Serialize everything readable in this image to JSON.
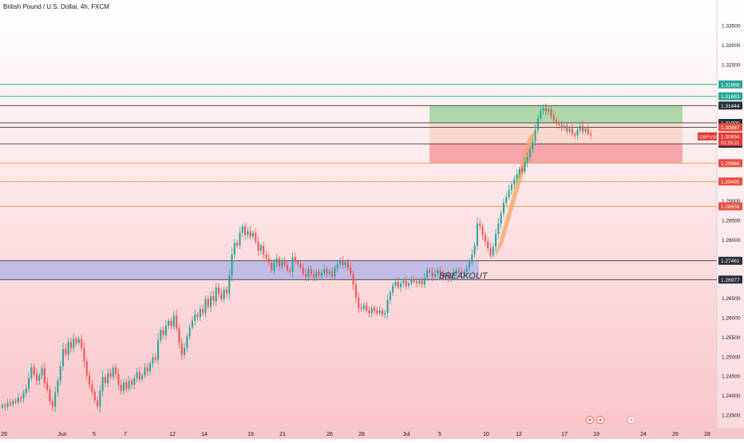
{
  "header": {
    "title": "British Pound / U.S. Dollar, 4h, FXCM"
  },
  "colors": {
    "bull": "#26a69a",
    "bear": "#ef5350",
    "bg_top": "#ffffff",
    "bg_bottom": "#f9c5c9",
    "demand_zone": "#b7b5e6",
    "target_zone": "#9fd3a0",
    "stop_zone": "#f59a9e",
    "entry_zone": "#f8d6c9",
    "channel": "#f4a460",
    "level_dark": "#3a3a3a",
    "level_green": "#26a69a",
    "level_orange": "#f19a4a",
    "tag_dark": "#2a2e39",
    "tag_green": "#26a69a",
    "tag_red": "#e74c3c",
    "tag_current": "#e53935",
    "axis_text": "#131722"
  },
  "chart_data": {
    "type": "candlestick",
    "symbol": "GBPUSD",
    "timeframe": "4h",
    "annotation": "BREAKOUT",
    "y_range": [
      1.235,
      1.3395
    ],
    "price_ticks": [
      "1.33500",
      "1.33000",
      "1.32500",
      "1.29000",
      "1.28500",
      "1.28000",
      "1.26500",
      "1.26000",
      "1.25500",
      "1.25000",
      "1.24500",
      "1.24000",
      "1.23500"
    ],
    "x_ticks": [
      "29",
      "Jun",
      "5",
      "7",
      "12",
      "14",
      "19",
      "21",
      "26",
      "28",
      "Jul",
      "5",
      "10",
      "12",
      "17",
      "19",
      "24",
      "26",
      "28"
    ],
    "levels": [
      {
        "value": 1.31988,
        "label": "1.31988",
        "kind": "green"
      },
      {
        "value": 1.31683,
        "label": "1.31683",
        "kind": "green"
      },
      {
        "value": 1.31444,
        "label": "1.31444",
        "kind": "dark"
      },
      {
        "value": 1.31,
        "label": "1.31000",
        "kind": "dark"
      },
      {
        "value": 1.30887,
        "label": "1.30887",
        "kind": "red"
      },
      {
        "value": 1.30463,
        "label": "1.30463",
        "kind": "dark"
      },
      {
        "value": 1.29966,
        "label": "1.29966",
        "kind": "orange"
      },
      {
        "value": 1.29495,
        "label": "1.29495",
        "kind": "orange"
      },
      {
        "value": 1.28858,
        "label": "1.28858",
        "kind": "orange"
      },
      {
        "value": 1.27461,
        "label": "1.27461",
        "kind": "dark"
      },
      {
        "value": 1.26977,
        "label": "1.26977",
        "kind": "dark"
      }
    ],
    "current_price": {
      "symbol": "GBPUSD",
      "value": 1.30694,
      "label": "1.30694",
      "countdown": "01:29:21"
    },
    "demand_zone": {
      "from": 1.26977,
      "to": 1.27461
    },
    "long_position": {
      "entry": 1.30463,
      "target": 1.31444,
      "stop": 1.29966
    },
    "closes": [
      1.2375,
      1.2372,
      1.2381,
      1.2378,
      1.2386,
      1.2383,
      1.2395,
      1.2392,
      1.2406,
      1.2418,
      1.2445,
      1.2473,
      1.2455,
      1.2438,
      1.2452,
      1.247,
      1.2432,
      1.2415,
      1.2385,
      1.2372,
      1.2408,
      1.2438,
      1.2475,
      1.252,
      1.2505,
      1.2538,
      1.2522,
      1.2546,
      1.2535,
      1.2545,
      1.2522,
      1.2488,
      1.2452,
      1.2428,
      1.241,
      1.2388,
      1.2372,
      1.2412,
      1.2448,
      1.2432,
      1.2458,
      1.2448,
      1.2472,
      1.2455,
      1.2428,
      1.2412,
      1.2434,
      1.2418,
      1.2438,
      1.2428,
      1.2445,
      1.246,
      1.2442,
      1.2452,
      1.2472,
      1.2462,
      1.2482,
      1.2498,
      1.2492,
      1.2542,
      1.2568,
      1.2555,
      1.258,
      1.2592,
      1.2578,
      1.2605,
      1.2572,
      1.2535,
      1.2505,
      1.2522,
      1.2552,
      1.2575,
      1.2592,
      1.2608,
      1.2602,
      1.2622,
      1.2612,
      1.2648,
      1.2628,
      1.2655,
      1.2642,
      1.2678,
      1.2662,
      1.2648,
      1.2672,
      1.2662,
      1.2708,
      1.2762,
      1.2792,
      1.2785,
      1.2818,
      1.2835,
      1.2812,
      1.2822,
      1.2808,
      1.2818,
      1.2795,
      1.2772,
      1.2785,
      1.2762,
      1.2752,
      1.2742,
      1.2722,
      1.274,
      1.2752,
      1.2732,
      1.2745,
      1.2735,
      1.2722,
      1.2718,
      1.2755,
      1.2745,
      1.2738,
      1.2728,
      1.2712,
      1.2705,
      1.2725,
      1.2712,
      1.2702,
      1.2718,
      1.2708,
      1.2715,
      1.2725,
      1.2712,
      1.2718,
      1.2705,
      1.2728,
      1.2738,
      1.2745,
      1.2735,
      1.2742,
      1.2728,
      1.2712,
      1.2685,
      1.2652,
      1.2625,
      1.2622,
      1.2632,
      1.2618,
      1.2612,
      1.2625,
      1.2618,
      1.2612,
      1.2618,
      1.2608,
      1.2612,
      1.2645,
      1.2665,
      1.2682,
      1.2692,
      1.2678,
      1.2688,
      1.2695,
      1.2682,
      1.2688,
      1.2698,
      1.2692,
      1.2688,
      1.2695,
      1.2685,
      1.2702,
      1.2722,
      1.2718,
      1.2705,
      1.2712,
      1.2722,
      1.2712,
      1.2705,
      1.2712,
      1.2702,
      1.2708,
      1.2715,
      1.2722,
      1.2718,
      1.2712,
      1.2718,
      1.2728,
      1.2742,
      1.2762,
      1.2785,
      1.2842,
      1.2835,
      1.2812,
      1.2795,
      1.2778,
      1.276,
      1.2782,
      1.2815,
      1.2842,
      1.2868,
      1.2895,
      1.291,
      1.2928,
      1.2942,
      1.2955,
      1.2968,
      1.2982,
      1.2975,
      1.2998,
      1.3012,
      1.3032,
      1.3052,
      1.3082,
      1.3112,
      1.3132,
      1.3138,
      1.313,
      1.3135,
      1.3118,
      1.3108,
      1.3098,
      1.3095,
      1.3088,
      1.3092,
      1.3078,
      1.3085,
      1.3072,
      1.3068,
      1.3082,
      1.3092,
      1.3078,
      1.3085,
      1.3072,
      1.3069
    ]
  }
}
